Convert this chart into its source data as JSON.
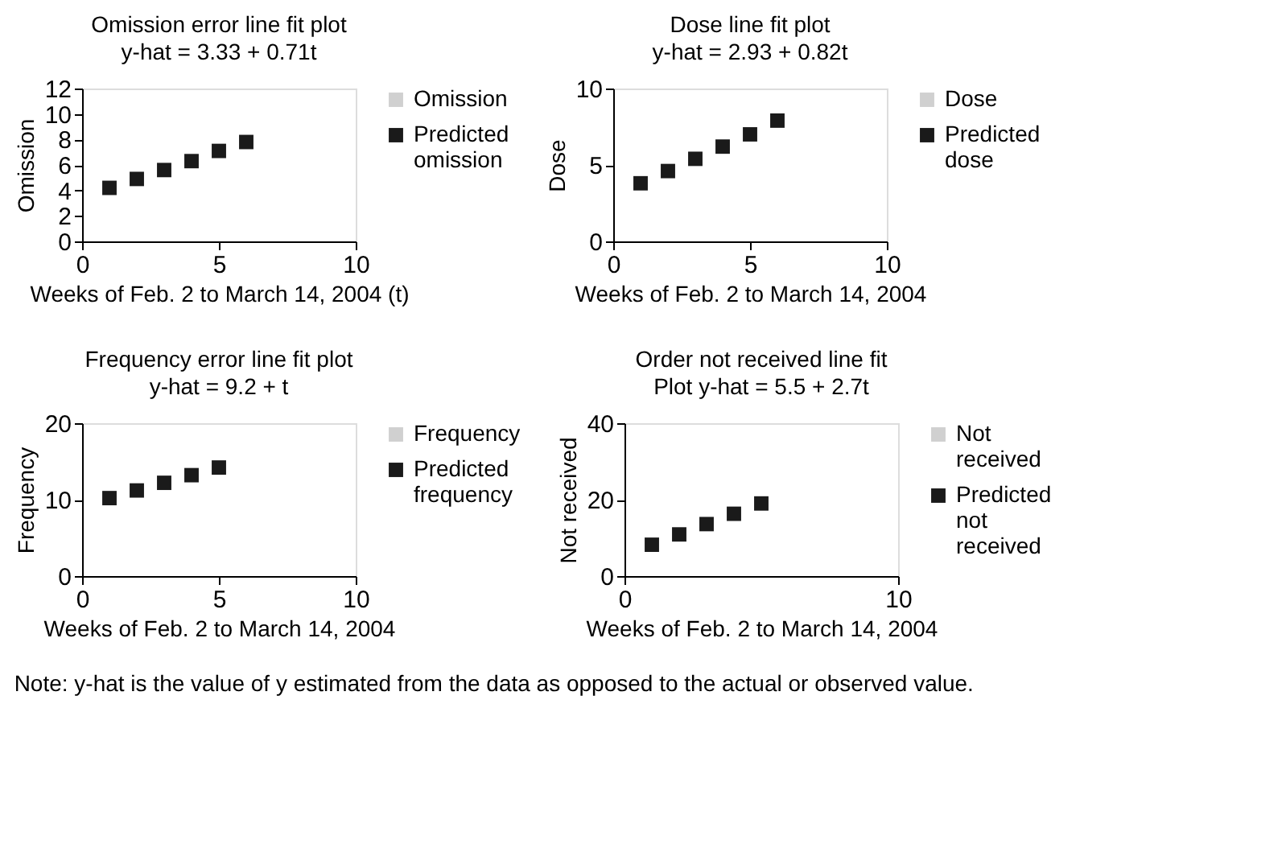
{
  "chart_data": [
    {
      "type": "scatter",
      "title": "Omission error line fit plot",
      "subtitle": "y-hat = 3.33 + 0.71t",
      "xlabel": "Weeks of Feb. 2 to March 14, 2004 (t)",
      "ylabel": "Omission",
      "x": [
        1,
        2,
        3,
        4,
        5,
        6
      ],
      "xlim": [
        0,
        10
      ],
      "xticks": [
        0,
        5,
        10
      ],
      "ylim": [
        0,
        12
      ],
      "yticks": [
        0,
        2,
        4,
        6,
        8,
        10,
        12
      ],
      "marker": "square",
      "legend": "right",
      "grid": false,
      "series": [
        {
          "name": "Omission",
          "color": "#d0d0d0",
          "values": [
            null,
            null,
            null,
            null,
            null,
            null
          ]
        },
        {
          "name": "Predicted omission",
          "color": "#1a1a1a",
          "values": [
            4.2,
            4.9,
            5.6,
            6.3,
            7.1,
            7.8
          ]
        }
      ]
    },
    {
      "type": "scatter",
      "title": "Dose line fit plot",
      "subtitle": "y-hat = 2.93 + 0.82t",
      "xlabel": "Weeks of Feb. 2 to March 14, 2004",
      "ylabel": "Dose",
      "x": [
        1,
        2,
        3,
        4,
        5,
        6
      ],
      "xlim": [
        0,
        10
      ],
      "xticks": [
        0,
        5,
        10
      ],
      "ylim": [
        0,
        10
      ],
      "yticks": [
        0,
        5,
        10
      ],
      "marker": "square",
      "legend": "right",
      "grid": false,
      "series": [
        {
          "name": "Dose",
          "color": "#d0d0d0",
          "values": [
            null,
            null,
            null,
            null,
            null,
            null
          ]
        },
        {
          "name": "Predicted dose",
          "color": "#1a1a1a",
          "values": [
            3.8,
            4.6,
            5.4,
            6.2,
            7.0,
            7.9
          ]
        }
      ]
    },
    {
      "type": "scatter",
      "title": "Frequency error line fit plot",
      "subtitle": "y-hat = 9.2 + t",
      "xlabel": "Weeks of Feb. 2 to March 14, 2004",
      "ylabel": "Frequency",
      "x": [
        1,
        2,
        3,
        4,
        5
      ],
      "xlim": [
        0,
        10
      ],
      "xticks": [
        0,
        5,
        10
      ],
      "ylim": [
        0,
        20
      ],
      "yticks": [
        0,
        10,
        20
      ],
      "marker": "square",
      "legend": "right",
      "grid": false,
      "series": [
        {
          "name": "Frequency",
          "color": "#d0d0d0",
          "values": [
            null,
            null,
            null,
            null,
            null
          ]
        },
        {
          "name": "Predicted frequency",
          "color": "#1a1a1a",
          "values": [
            10.2,
            11.2,
            12.2,
            13.2,
            14.2
          ]
        }
      ]
    },
    {
      "type": "scatter",
      "title": "Order not received line fit",
      "subtitle": "Plot y-hat = 5.5 + 2.7t",
      "xlabel": "Weeks of Feb. 2 to March 14, 2004",
      "ylabel": "Not received",
      "x": [
        1,
        2,
        3,
        4,
        5
      ],
      "xlim": [
        0,
        10
      ],
      "xticks": [
        0,
        10
      ],
      "ylim": [
        0,
        40
      ],
      "yticks": [
        0,
        20,
        40
      ],
      "marker": "square",
      "legend": "right",
      "grid": false,
      "annotations": [
        "Note: y-hat is the value of y estimated from the data as opposed to the actual or observed value."
      ],
      "series": [
        {
          "name": "Not received",
          "color": "#d0d0d0",
          "values": [
            null,
            null,
            null,
            null,
            null
          ]
        },
        {
          "name": "Predicted not received",
          "color": "#1a1a1a",
          "values": [
            8.2,
            10.9,
            13.6,
            16.3,
            19.0
          ]
        }
      ]
    }
  ]
}
